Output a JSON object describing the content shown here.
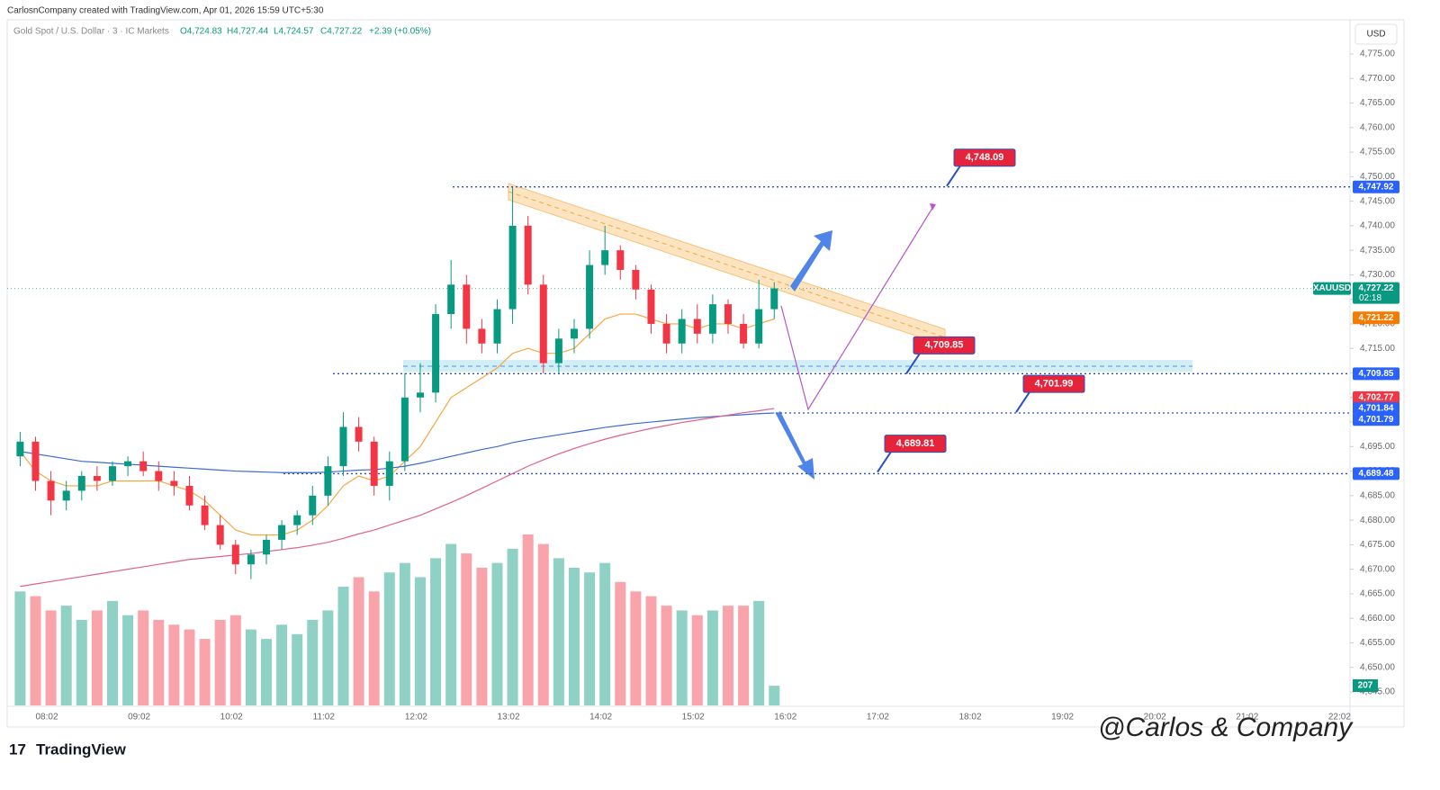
{
  "header": {
    "attribution": "CarlosnCompany created with TradingView.com, Apr 01, 2026 15:59 UTC+5:30"
  },
  "legend": {
    "symbol": "Gold Spot / U.S. Dollar · 3 · IC Markets",
    "open": "O4,724.83",
    "high": "H4,727.44",
    "low": "L4,724.57",
    "close": "C4,727.22",
    "change": "+2.39 (+0.05%)"
  },
  "currency": "USD",
  "footer": {
    "logo": "TradingView",
    "watermark": "@Carlos & Company"
  },
  "chart_data": {
    "type": "candlestick",
    "up_color": "#089981",
    "down_color": "#f23645",
    "open": [
      4693,
      4696,
      4688,
      4684,
      4686,
      4689,
      4688,
      4691,
      4692,
      4690,
      4688,
      4687,
      4683,
      4679,
      4675,
      4671,
      4673,
      4676,
      4679,
      4681,
      4685,
      4691,
      4699,
      4696,
      4687,
      4692,
      4705,
      4706,
      4722,
      4728,
      4719,
      4716,
      4723,
      4740,
      4728,
      4712,
      4717,
      4719,
      4732,
      4735,
      4731,
      4727,
      4720,
      4716,
      4721,
      4718,
      4724,
      4720,
      4716,
      4723
    ],
    "high": [
      4698,
      4697,
      4690,
      4688,
      4690,
      4691,
      4692,
      4693,
      4694,
      4692,
      4690,
      4689,
      4685,
      4681,
      4676,
      4674,
      4677,
      4680,
      4682,
      4687,
      4693,
      4702,
      4701,
      4697,
      4694,
      4710,
      4712,
      4724,
      4733,
      4730,
      4721,
      4725,
      4747.9,
      4742,
      4730,
      4719,
      4721,
      4735,
      4740,
      4736,
      4732,
      4728,
      4722,
      4723,
      4724,
      4726,
      4725,
      4722,
      4729,
      4728.5
    ],
    "low": [
      4691,
      4686,
      4681,
      4682,
      4684,
      4686,
      4687,
      4689,
      4689,
      4686,
      4685,
      4682,
      4678,
      4674,
      4669,
      4668,
      4671,
      4674,
      4677,
      4679,
      4683,
      4689,
      4694,
      4685,
      4684,
      4690,
      4702,
      4704,
      4719,
      4716,
      4714,
      4714,
      4720,
      4726,
      4709.9,
      4710,
      4714,
      4717,
      4730,
      4729,
      4725,
      4718,
      4714,
      4714,
      4716,
      4716,
      4718,
      4715,
      4715,
      4721
    ],
    "close": [
      4696,
      4688,
      4684,
      4686,
      4689,
      4688,
      4691,
      4692,
      4690,
      4688,
      4687,
      4683,
      4679,
      4675,
      4671,
      4673,
      4676,
      4679,
      4681,
      4685,
      4691,
      4699,
      4696,
      4687,
      4692,
      4705,
      4706,
      4722,
      4728,
      4719,
      4716,
      4723,
      4740,
      4728,
      4712,
      4717,
      4719,
      4732,
      4735,
      4731,
      4727,
      4720,
      4716,
      4721,
      4718,
      4724,
      4720,
      4716,
      4723,
      4727.22
    ],
    "volume": [
      1200,
      1150,
      1000,
      1050,
      900,
      1000,
      1100,
      950,
      1000,
      900,
      850,
      800,
      700,
      900,
      950,
      800,
      700,
      850,
      750,
      900,
      1000,
      1250,
      1350,
      1200,
      1400,
      1500,
      1350,
      1550,
      1700,
      1600,
      1450,
      1500,
      1650,
      1800,
      1700,
      1550,
      1450,
      1400,
      1500,
      1300,
      1200,
      1150,
      1050,
      1000,
      950,
      1000,
      1050,
      1050,
      1100,
      207
    ],
    "volume_label": "207",
    "series": [
      {
        "color": "#f5a742",
        "values": [
          4694,
          4690,
          4688,
          4687,
          4687,
          4687,
          4688,
          4688,
          4688,
          4688,
          4687,
          4686,
          4684,
          4681,
          4678,
          4677,
          4677,
          4677,
          4678,
          4680,
          4683,
          4687,
          4689,
          4688,
          4689,
          4692,
          4695,
          4700,
          4705,
          4707,
          4709,
          4711,
          4714,
          4715,
          4714,
          4714,
          4715,
          4718,
          4721,
          4722,
          4722,
          4721,
          4720,
          4720,
          4719,
          4720,
          4720,
          4719,
          4720,
          4721
        ]
      },
      {
        "color": "#3d6bd1",
        "values": [
          4694,
          4693.5,
          4693,
          4692.5,
          4692,
          4691.8,
          4691.6,
          4691.4,
          4691.2,
          4691,
          4690.8,
          4690.6,
          4690.4,
          4690.2,
          4690,
          4689.9,
          4689.8,
          4689.7,
          4689.7,
          4689.7,
          4689.8,
          4690,
          4690.2,
          4690.3,
          4690.6,
          4691,
          4691.6,
          4692.3,
          4693,
          4693.7,
          4694.4,
          4695,
          4695.8,
          4696.4,
          4696.9,
          4697.4,
          4697.9,
          4698.4,
          4698.9,
          4699.3,
          4699.7,
          4700,
          4700.3,
          4700.6,
          4700.9,
          4701.1,
          4701.3,
          4701.5,
          4701.7,
          4701.84
        ]
      },
      {
        "color": "#e0608f",
        "values": [
          4666.5,
          4667,
          4667.5,
          4668,
          4668.5,
          4669,
          4669.5,
          4670,
          4670.5,
          4671,
          4671.5,
          4672,
          4672.3,
          4672.6,
          4672.9,
          4673.2,
          4673.6,
          4674,
          4674.4,
          4674.9,
          4675.5,
          4676.3,
          4677.2,
          4678,
          4679,
          4680,
          4681,
          4682.3,
          4683.6,
          4685,
          4686.5,
          4688,
          4689.5,
          4691,
          4692.3,
          4693.5,
          4694.6,
          4695.6,
          4696.5,
          4697.3,
          4698,
          4698.7,
          4699.3,
          4699.9,
          4700.4,
          4700.9,
          4701.4,
          4701.9,
          4702.3,
          4702.77
        ]
      }
    ],
    "xticks": [
      "08:02",
      "09:02",
      "10:02",
      "11:02",
      "12:02",
      "13:02",
      "14:02",
      "15:02",
      "16:02",
      "17:02",
      "18:02",
      "19:02",
      "20:02",
      "21:02",
      "22:02"
    ],
    "ylim": [
      4645,
      4775
    ],
    "yticks": [
      {
        "value": 4645,
        "label": "4,645.00"
      },
      {
        "value": 4650,
        "label": "4,650.00"
      },
      {
        "value": 4655,
        "label": "4,655.00"
      },
      {
        "value": 4660,
        "label": "4,660.00"
      },
      {
        "value": 4665,
        "label": "4,665.00"
      },
      {
        "value": 4670,
        "label": "4,670.00"
      },
      {
        "value": 4675,
        "label": "4,675.00"
      },
      {
        "value": 4680,
        "label": "4,680.00"
      },
      {
        "value": 4685,
        "label": "4,685.00"
      },
      {
        "value": 4690,
        "label": "4,690.00"
      },
      {
        "value": 4695,
        "label": "4,695.00"
      },
      {
        "value": 4700,
        "label": "4,700.00"
      },
      {
        "value": 4705,
        "label": "4,705.00"
      },
      {
        "value": 4710,
        "label": "4,710.00"
      },
      {
        "value": 4715,
        "label": "4,715.00"
      },
      {
        "value": 4720,
        "label": "4,720.00"
      },
      {
        "value": 4725,
        "label": "4,725.00"
      },
      {
        "value": 4730,
        "label": "4,730.00"
      },
      {
        "value": 4735,
        "label": "4,735.00"
      },
      {
        "value": 4740,
        "label": "4,740.00"
      },
      {
        "value": 4745,
        "label": "4,745.00"
      },
      {
        "value": 4750,
        "label": "4,750.00"
      },
      {
        "value": 4755,
        "label": "4,755.00"
      },
      {
        "value": 4760,
        "label": "4,760.00"
      },
      {
        "value": 4765,
        "label": "4,765.00"
      },
      {
        "value": 4770,
        "label": "4,770.00"
      },
      {
        "value": 4775,
        "label": "4,775.00"
      }
    ],
    "current": {
      "symbol": "XAUUSD",
      "value": 4727.22,
      "label": "4,727.22",
      "countdown": "02:18",
      "color": "#089981"
    },
    "price_badges": [
      {
        "value": 4747.92,
        "label": "4,747.92",
        "color": "#2962ff"
      },
      {
        "value": 4721.22,
        "label": "4,721.22",
        "color": "#f57c00"
      },
      {
        "value": 4709.85,
        "label": "4,709.85",
        "color": "#2962ff"
      },
      {
        "value": 4702.77,
        "label": "4,702.77",
        "color": "#f23645"
      },
      {
        "value": 4701.84,
        "label": "4,701.84",
        "color": "#2962ff"
      },
      {
        "value": 4701.79,
        "label": "4,701.79",
        "color": "#2962ff"
      },
      {
        "value": 4689.48,
        "label": "4,689.48",
        "color": "#2962ff"
      }
    ],
    "callouts": [
      {
        "value": 4748.09,
        "label": "4,748.09"
      },
      {
        "value": 4709.85,
        "label": "4,709.85"
      },
      {
        "value": 4701.99,
        "label": "4,701.99"
      },
      {
        "value": 4689.81,
        "label": "4,689.81"
      }
    ]
  }
}
